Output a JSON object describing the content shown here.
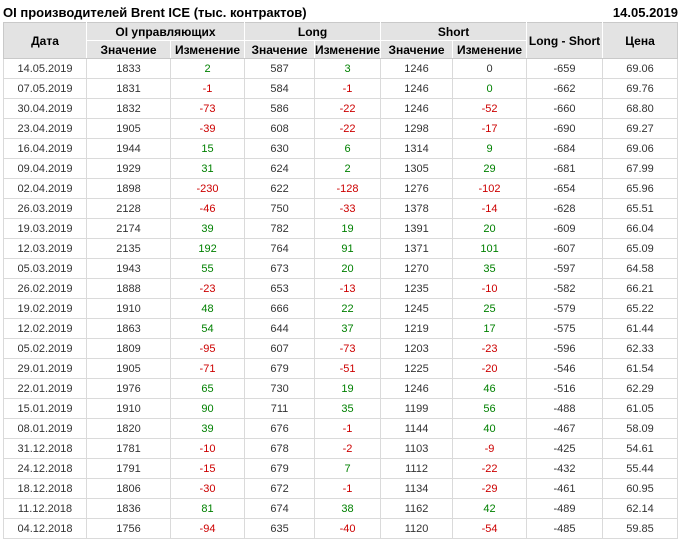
{
  "title": "OI производителей Brent ICE (тыс. контрактов)",
  "report_date": "14.05.2019",
  "colors": {
    "positive": "#008000",
    "negative": "#cc0000",
    "text": "#333333",
    "header_bg": "#e3e3e3"
  },
  "chart_data": {
    "type": "table",
    "column_groups": [
      {
        "label": "OI управляющих"
      },
      {
        "label": "Long"
      },
      {
        "label": "Short"
      }
    ],
    "columns": {
      "date": "Дата",
      "value": "Значение",
      "change": "Изменение",
      "long_short": "Long - Short",
      "price": "Цена"
    },
    "rows": [
      {
        "date": "14.05.2019",
        "oi": "1833",
        "oi_chg": "2",
        "oi_chg_c": "pos",
        "long": "587",
        "long_chg": "3",
        "long_chg_c": "pos",
        "short": "1246",
        "short_chg": "0",
        "short_chg_c": "flat",
        "ls": "-659",
        "price": "69.06"
      },
      {
        "date": "07.05.2019",
        "oi": "1831",
        "oi_chg": "-1",
        "oi_chg_c": "neg",
        "long": "584",
        "long_chg": "-1",
        "long_chg_c": "neg",
        "short": "1246",
        "short_chg": "0",
        "short_chg_c": "pos",
        "ls": "-662",
        "price": "69.76"
      },
      {
        "date": "30.04.2019",
        "oi": "1832",
        "oi_chg": "-73",
        "oi_chg_c": "neg",
        "long": "586",
        "long_chg": "-22",
        "long_chg_c": "neg",
        "short": "1246",
        "short_chg": "-52",
        "short_chg_c": "neg",
        "ls": "-660",
        "price": "68.80"
      },
      {
        "date": "23.04.2019",
        "oi": "1905",
        "oi_chg": "-39",
        "oi_chg_c": "neg",
        "long": "608",
        "long_chg": "-22",
        "long_chg_c": "neg",
        "short": "1298",
        "short_chg": "-17",
        "short_chg_c": "neg",
        "ls": "-690",
        "price": "69.27"
      },
      {
        "date": "16.04.2019",
        "oi": "1944",
        "oi_chg": "15",
        "oi_chg_c": "pos",
        "long": "630",
        "long_chg": "6",
        "long_chg_c": "pos",
        "short": "1314",
        "short_chg": "9",
        "short_chg_c": "pos",
        "ls": "-684",
        "price": "69.06"
      },
      {
        "date": "09.04.2019",
        "oi": "1929",
        "oi_chg": "31",
        "oi_chg_c": "pos",
        "long": "624",
        "long_chg": "2",
        "long_chg_c": "pos",
        "short": "1305",
        "short_chg": "29",
        "short_chg_c": "pos",
        "ls": "-681",
        "price": "67.99"
      },
      {
        "date": "02.04.2019",
        "oi": "1898",
        "oi_chg": "-230",
        "oi_chg_c": "neg",
        "long": "622",
        "long_chg": "-128",
        "long_chg_c": "neg",
        "short": "1276",
        "short_chg": "-102",
        "short_chg_c": "neg",
        "ls": "-654",
        "price": "65.96"
      },
      {
        "date": "26.03.2019",
        "oi": "2128",
        "oi_chg": "-46",
        "oi_chg_c": "neg",
        "long": "750",
        "long_chg": "-33",
        "long_chg_c": "neg",
        "short": "1378",
        "short_chg": "-14",
        "short_chg_c": "neg",
        "ls": "-628",
        "price": "65.51"
      },
      {
        "date": "19.03.2019",
        "oi": "2174",
        "oi_chg": "39",
        "oi_chg_c": "pos",
        "long": "782",
        "long_chg": "19",
        "long_chg_c": "pos",
        "short": "1391",
        "short_chg": "20",
        "short_chg_c": "pos",
        "ls": "-609",
        "price": "66.04"
      },
      {
        "date": "12.03.2019",
        "oi": "2135",
        "oi_chg": "192",
        "oi_chg_c": "pos",
        "long": "764",
        "long_chg": "91",
        "long_chg_c": "pos",
        "short": "1371",
        "short_chg": "101",
        "short_chg_c": "pos",
        "ls": "-607",
        "price": "65.09"
      },
      {
        "date": "05.03.2019",
        "oi": "1943",
        "oi_chg": "55",
        "oi_chg_c": "pos",
        "long": "673",
        "long_chg": "20",
        "long_chg_c": "pos",
        "short": "1270",
        "short_chg": "35",
        "short_chg_c": "pos",
        "ls": "-597",
        "price": "64.58"
      },
      {
        "date": "26.02.2019",
        "oi": "1888",
        "oi_chg": "-23",
        "oi_chg_c": "neg",
        "long": "653",
        "long_chg": "-13",
        "long_chg_c": "neg",
        "short": "1235",
        "short_chg": "-10",
        "short_chg_c": "neg",
        "ls": "-582",
        "price": "66.21"
      },
      {
        "date": "19.02.2019",
        "oi": "1910",
        "oi_chg": "48",
        "oi_chg_c": "pos",
        "long": "666",
        "long_chg": "22",
        "long_chg_c": "pos",
        "short": "1245",
        "short_chg": "25",
        "short_chg_c": "pos",
        "ls": "-579",
        "price": "65.22"
      },
      {
        "date": "12.02.2019",
        "oi": "1863",
        "oi_chg": "54",
        "oi_chg_c": "pos",
        "long": "644",
        "long_chg": "37",
        "long_chg_c": "pos",
        "short": "1219",
        "short_chg": "17",
        "short_chg_c": "pos",
        "ls": "-575",
        "price": "61.44"
      },
      {
        "date": "05.02.2019",
        "oi": "1809",
        "oi_chg": "-95",
        "oi_chg_c": "neg",
        "long": "607",
        "long_chg": "-73",
        "long_chg_c": "neg",
        "short": "1203",
        "short_chg": "-23",
        "short_chg_c": "neg",
        "ls": "-596",
        "price": "62.33"
      },
      {
        "date": "29.01.2019",
        "oi": "1905",
        "oi_chg": "-71",
        "oi_chg_c": "neg",
        "long": "679",
        "long_chg": "-51",
        "long_chg_c": "neg",
        "short": "1225",
        "short_chg": "-20",
        "short_chg_c": "neg",
        "ls": "-546",
        "price": "61.54"
      },
      {
        "date": "22.01.2019",
        "oi": "1976",
        "oi_chg": "65",
        "oi_chg_c": "pos",
        "long": "730",
        "long_chg": "19",
        "long_chg_c": "pos",
        "short": "1246",
        "short_chg": "46",
        "short_chg_c": "pos",
        "ls": "-516",
        "price": "62.29"
      },
      {
        "date": "15.01.2019",
        "oi": "1910",
        "oi_chg": "90",
        "oi_chg_c": "pos",
        "long": "711",
        "long_chg": "35",
        "long_chg_c": "pos",
        "short": "1199",
        "short_chg": "56",
        "short_chg_c": "pos",
        "ls": "-488",
        "price": "61.05"
      },
      {
        "date": "08.01.2019",
        "oi": "1820",
        "oi_chg": "39",
        "oi_chg_c": "pos",
        "long": "676",
        "long_chg": "-1",
        "long_chg_c": "neg",
        "short": "1144",
        "short_chg": "40",
        "short_chg_c": "pos",
        "ls": "-467",
        "price": "58.09"
      },
      {
        "date": "31.12.2018",
        "oi": "1781",
        "oi_chg": "-10",
        "oi_chg_c": "neg",
        "long": "678",
        "long_chg": "-2",
        "long_chg_c": "neg",
        "short": "1103",
        "short_chg": "-9",
        "short_chg_c": "neg",
        "ls": "-425",
        "price": "54.61"
      },
      {
        "date": "24.12.2018",
        "oi": "1791",
        "oi_chg": "-15",
        "oi_chg_c": "neg",
        "long": "679",
        "long_chg": "7",
        "long_chg_c": "pos",
        "short": "1112",
        "short_chg": "-22",
        "short_chg_c": "neg",
        "ls": "-432",
        "price": "55.44"
      },
      {
        "date": "18.12.2018",
        "oi": "1806",
        "oi_chg": "-30",
        "oi_chg_c": "neg",
        "long": "672",
        "long_chg": "-1",
        "long_chg_c": "neg",
        "short": "1134",
        "short_chg": "-29",
        "short_chg_c": "neg",
        "ls": "-461",
        "price": "60.95"
      },
      {
        "date": "11.12.2018",
        "oi": "1836",
        "oi_chg": "81",
        "oi_chg_c": "pos",
        "long": "674",
        "long_chg": "38",
        "long_chg_c": "pos",
        "short": "1162",
        "short_chg": "42",
        "short_chg_c": "pos",
        "ls": "-489",
        "price": "62.14"
      },
      {
        "date": "04.12.2018",
        "oi": "1756",
        "oi_chg": "-94",
        "oi_chg_c": "neg",
        "long": "635",
        "long_chg": "-40",
        "long_chg_c": "neg",
        "short": "1120",
        "short_chg": "-54",
        "short_chg_c": "neg",
        "ls": "-485",
        "price": "59.85"
      }
    ]
  }
}
